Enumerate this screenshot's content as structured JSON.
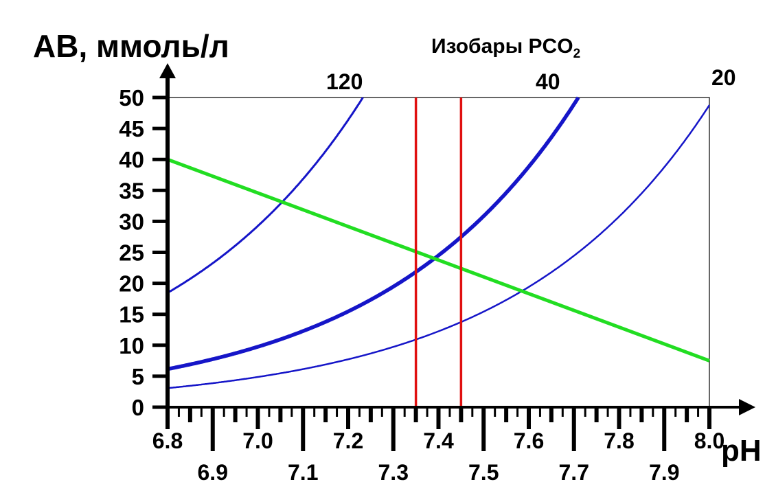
{
  "chart_data": {
    "type": "line",
    "ylabel": "АВ, ммоль/л",
    "xlabel": "pH",
    "isobar_label": "Изобары PCO",
    "isobar_label_sub": "2",
    "xlim": [
      6.8,
      8.0
    ],
    "ylim": [
      0,
      50
    ],
    "x_ticks_upper": [
      "6.8",
      "7.0",
      "7.2",
      "7.4",
      "7.6",
      "7.8",
      "8.0"
    ],
    "x_ticks_lower": [
      "6.9",
      "7.1",
      "7.3",
      "7.5",
      "7.7",
      "7.9"
    ],
    "y_ticks": [
      "0",
      "5",
      "10",
      "15",
      "20",
      "25",
      "30",
      "35",
      "40",
      "45",
      "50"
    ],
    "isobars": [
      {
        "name": "120",
        "pco2": 120,
        "color": "#1515c8"
      },
      {
        "name": "40",
        "pco2": 40,
        "color": "#1515c8"
      },
      {
        "name": "20",
        "pco2": 20,
        "color": "#1515c8"
      }
    ],
    "buffer_line": {
      "x": [
        6.8,
        8.0
      ],
      "y": [
        40,
        7.5
      ],
      "color": "#22dd22"
    },
    "normal_ph_bounds": {
      "x": [
        7.35,
        7.45
      ],
      "color": "#e01010"
    },
    "grid": false
  }
}
